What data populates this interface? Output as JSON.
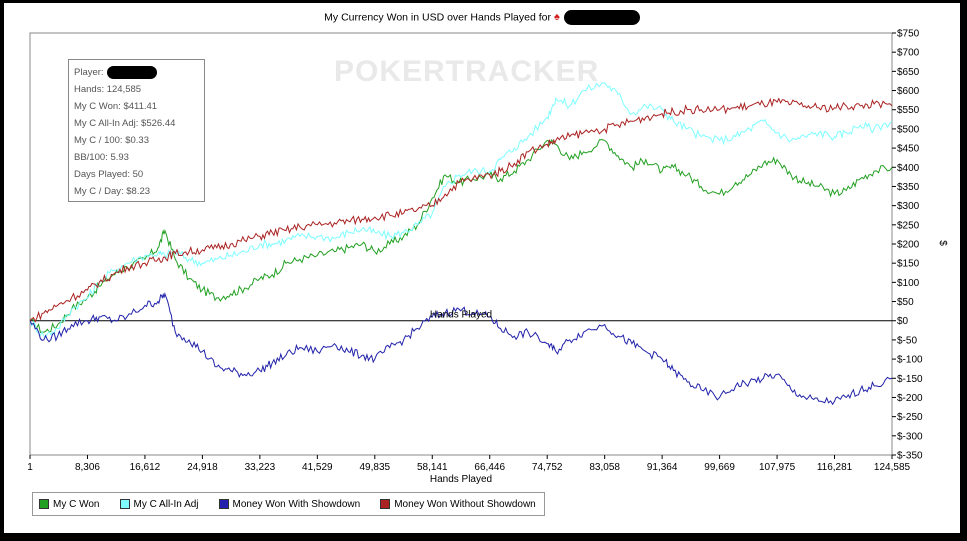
{
  "chart_data": {
    "type": "line",
    "title": "My Currency Won in USD over Hands Played for",
    "xlabel": "Hands Played",
    "ylabel": "$",
    "xlim": [
      1,
      124585
    ],
    "ylim": [
      -350,
      750
    ],
    "x_ticks": [
      "1",
      "8,306",
      "16,612",
      "24,918",
      "33,223",
      "41,529",
      "49,835",
      "58,141",
      "66,446",
      "74,752",
      "83,058",
      "91,364",
      "99,669",
      "107,975",
      "116,281",
      "124,585"
    ],
    "y_ticks": [
      "$750",
      "$700",
      "$650",
      "$600",
      "$550",
      "$500",
      "$450",
      "$400",
      "$350",
      "$300",
      "$250",
      "$200",
      "$150",
      "$100",
      "$50",
      "$0",
      "$-50",
      "$-100",
      "$-150",
      "$-200",
      "$-250",
      "$-300",
      "$-350"
    ],
    "y_tick_values": [
      750,
      700,
      650,
      600,
      550,
      500,
      450,
      400,
      350,
      300,
      250,
      200,
      150,
      100,
      50,
      0,
      -50,
      -100,
      -150,
      -200,
      -250,
      -300,
      -350
    ],
    "grid": false,
    "legend_position": "bottom-left",
    "series": [
      {
        "name": "My C Won",
        "color": "#22a022",
        "x": [
          1,
          2000,
          4000,
          6000,
          8306,
          10000,
          12000,
          14000,
          16612,
          18500,
          19500,
          21000,
          23000,
          24918,
          27000,
          29000,
          31000,
          33223,
          35000,
          37000,
          39000,
          41529,
          44000,
          46000,
          48000,
          49835,
          52000,
          54000,
          56000,
          58141,
          60000,
          62000,
          64000,
          66446,
          68000,
          70000,
          72000,
          74752,
          76000,
          78000,
          80000,
          83058,
          85000,
          87000,
          89000,
          91364,
          93000,
          95000,
          97000,
          99669,
          102000,
          104000,
          106000,
          107975,
          110000,
          112000,
          114000,
          116281,
          118000,
          120000,
          122000,
          124585
        ],
        "y": [
          0,
          -30,
          -10,
          30,
          60,
          90,
          120,
          140,
          160,
          190,
          235,
          160,
          110,
          80,
          60,
          70,
          85,
          110,
          120,
          150,
          160,
          170,
          180,
          190,
          200,
          180,
          200,
          220,
          250,
          320,
          380,
          360,
          370,
          380,
          370,
          390,
          420,
          470,
          460,
          420,
          440,
          470,
          430,
          400,
          420,
          390,
          400,
          380,
          350,
          330,
          360,
          380,
          410,
          420,
          380,
          360,
          350,
          330,
          340,
          370,
          390,
          400
        ]
      },
      {
        "name": "My C All-In Adj",
        "color": "#7fffff",
        "x": [
          1,
          2000,
          4000,
          6000,
          8306,
          10000,
          12000,
          14000,
          16612,
          18500,
          19500,
          21000,
          23000,
          24918,
          27000,
          29000,
          31000,
          33223,
          35000,
          37000,
          39000,
          41529,
          44000,
          46000,
          48000,
          49835,
          52000,
          54000,
          56000,
          58141,
          60000,
          62000,
          64000,
          66446,
          68000,
          70000,
          72000,
          74752,
          76000,
          78000,
          80000,
          83058,
          85000,
          87000,
          89000,
          91364,
          93000,
          95000,
          97000,
          99669,
          102000,
          104000,
          106000,
          107975,
          110000,
          112000,
          114000,
          116281,
          118000,
          120000,
          122000,
          124585
        ],
        "y": [
          0,
          -40,
          -20,
          30,
          60,
          100,
          130,
          150,
          170,
          175,
          170,
          180,
          160,
          150,
          160,
          170,
          180,
          200,
          200,
          210,
          220,
          220,
          215,
          230,
          240,
          230,
          220,
          230,
          250,
          280,
          350,
          380,
          390,
          390,
          420,
          450,
          480,
          530,
          580,
          560,
          600,
          620,
          590,
          540,
          560,
          550,
          520,
          500,
          480,
          470,
          480,
          500,
          520,
          490,
          470,
          480,
          490,
          480,
          490,
          510,
          500,
          520
        ]
      },
      {
        "name": "Money Won With Showdown",
        "color": "#2222aa",
        "x": [
          1,
          2000,
          4000,
          6000,
          8306,
          10000,
          12000,
          14000,
          16612,
          18500,
          19500,
          21000,
          23000,
          24918,
          27000,
          29000,
          31000,
          33223,
          35000,
          37000,
          39000,
          41529,
          44000,
          46000,
          48000,
          49835,
          52000,
          54000,
          56000,
          58141,
          60000,
          62000,
          64000,
          66446,
          68000,
          70000,
          72000,
          74752,
          76000,
          78000,
          80000,
          83058,
          85000,
          87000,
          89000,
          91364,
          93000,
          95000,
          97000,
          99669,
          102000,
          104000,
          106000,
          107975,
          110000,
          112000,
          114000,
          116281,
          118000,
          120000,
          122000,
          124585
        ],
        "y": [
          0,
          -50,
          -40,
          -10,
          0,
          10,
          0,
          10,
          40,
          50,
          70,
          -30,
          -50,
          -80,
          -120,
          -130,
          -140,
          -130,
          -110,
          -90,
          -70,
          -80,
          -60,
          -80,
          -90,
          -100,
          -70,
          -50,
          -20,
          10,
          20,
          30,
          20,
          10,
          -20,
          -40,
          -30,
          -60,
          -80,
          -50,
          -30,
          -10,
          -40,
          -60,
          -80,
          -100,
          -130,
          -160,
          -180,
          -200,
          -170,
          -160,
          -150,
          -140,
          -180,
          -200,
          -210,
          -210,
          -200,
          -180,
          -170,
          -150
        ]
      },
      {
        "name": "Money Won Without Showdown",
        "color": "#aa2222",
        "x": [
          1,
          2000,
          4000,
          6000,
          8306,
          10000,
          12000,
          14000,
          16612,
          18500,
          19500,
          21000,
          23000,
          24918,
          27000,
          29000,
          31000,
          33223,
          35000,
          37000,
          39000,
          41529,
          44000,
          46000,
          48000,
          49835,
          52000,
          54000,
          56000,
          58141,
          60000,
          62000,
          64000,
          66446,
          68000,
          70000,
          72000,
          74752,
          76000,
          78000,
          80000,
          83058,
          85000,
          87000,
          89000,
          91364,
          93000,
          95000,
          97000,
          99669,
          102000,
          104000,
          106000,
          107975,
          110000,
          112000,
          114000,
          116281,
          118000,
          120000,
          122000,
          124585
        ],
        "y": [
          0,
          20,
          40,
          60,
          80,
          100,
          120,
          140,
          150,
          160,
          165,
          175,
          180,
          185,
          190,
          200,
          210,
          220,
          230,
          235,
          245,
          250,
          255,
          260,
          265,
          270,
          275,
          280,
          290,
          300,
          330,
          360,
          370,
          380,
          390,
          410,
          440,
          460,
          470,
          480,
          490,
          500,
          510,
          520,
          530,
          540,
          545,
          550,
          550,
          550,
          555,
          560,
          565,
          570,
          565,
          560,
          555,
          555,
          560,
          560,
          565,
          560
        ]
      }
    ]
  },
  "info_box": {
    "player_label": "Player:",
    "lines": [
      "Hands: 124,585",
      "My C Won: $411.41",
      "My C All-In Adj: $526.44",
      "My C / 100: $0.33",
      "BB/100: 5.93",
      "Days Played: 50",
      "My C / Day: $8.23"
    ]
  },
  "watermark": "POKERTRACKER"
}
